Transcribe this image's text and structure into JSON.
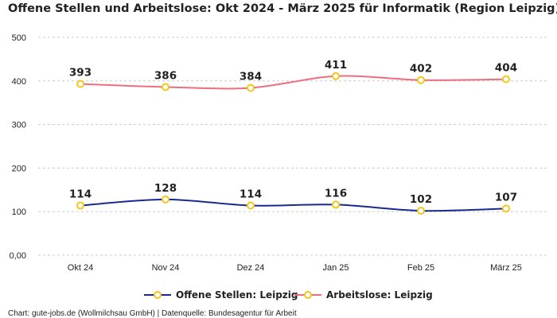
{
  "chart_data": {
    "type": "line",
    "title": "Offene Stellen und Arbeitslose: Okt 2024 - März 2025 für Informatik (Region Leipzig)",
    "categories": [
      "Okt 24",
      "Nov 24",
      "Dez 24",
      "Jan 25",
      "Feb 25",
      "März 25"
    ],
    "ylim": [
      0,
      500
    ],
    "yticks": [
      0,
      100,
      200,
      300,
      400,
      500
    ],
    "ytick_labels": [
      "0,00",
      "100",
      "200",
      "300",
      "400",
      "500"
    ],
    "grid": true,
    "legend_position": "bottom-center",
    "series": [
      {
        "name": "Offene Stellen: Leipzig",
        "color": "#1a2a8c",
        "values": [
          114,
          128,
          114,
          116,
          102,
          107
        ]
      },
      {
        "name": "Arbeitslose: Leipzig",
        "color": "#ee6e7e",
        "values": [
          393,
          386,
          384,
          411,
          402,
          404
        ]
      }
    ],
    "marker_color": "#f5c518",
    "source": "Chart: gute-jobs.de (Wollmilchsau GmbH) | Datenquelle: Bundesagentur für Arbeit"
  }
}
